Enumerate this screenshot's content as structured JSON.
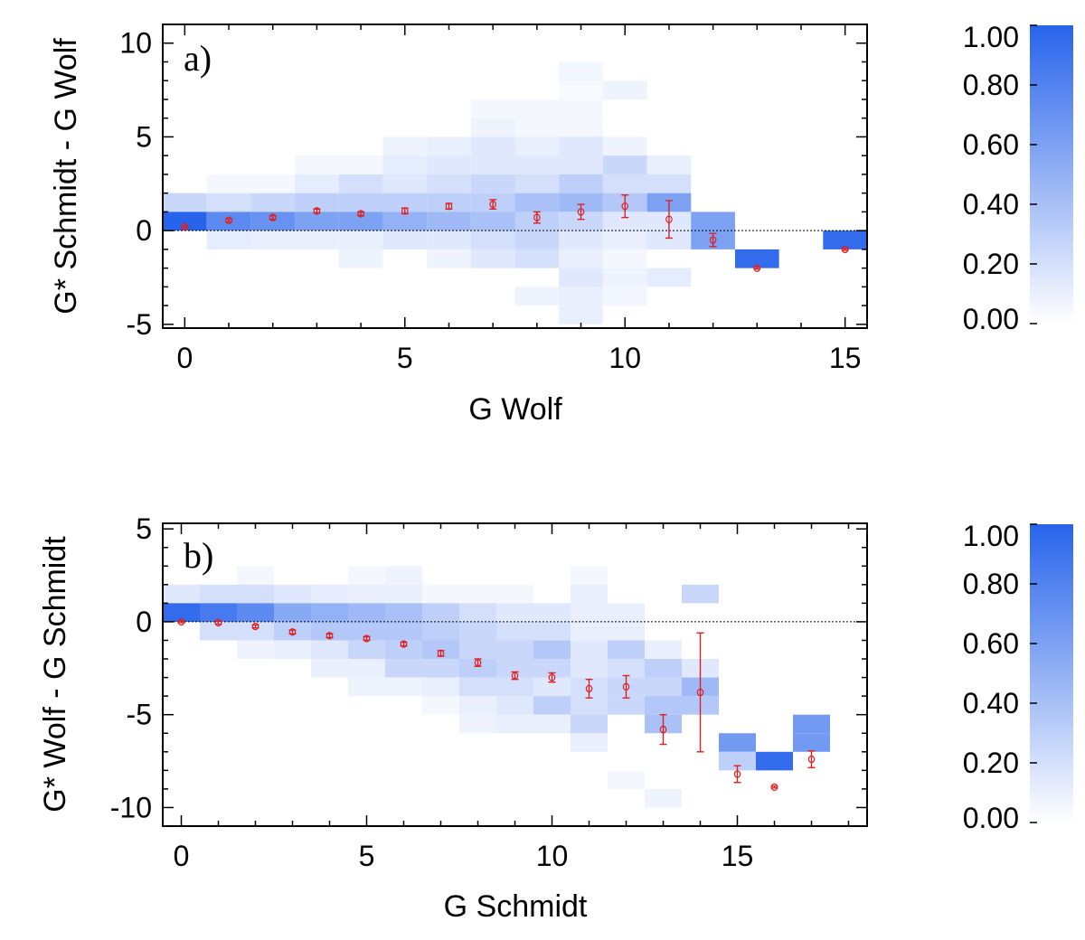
{
  "chart_data": [
    {
      "type": "heatmap",
      "panel_label": "a)",
      "xlabel": "G Wolf",
      "ylabel": "G* Schmidt - G Wolf",
      "xlim": [
        -0.5,
        15.5
      ],
      "ylim": [
        -5.2,
        11.0
      ],
      "xticks": [
        0,
        5,
        10,
        15
      ],
      "yticks": [
        -5,
        0,
        5,
        10
      ],
      "reference_line_y": 0,
      "colorbar": {
        "min": 0.0,
        "max": 1.0,
        "ticks": [
          "0.00",
          "0.20",
          "0.40",
          "0.60",
          "0.80",
          "1.00"
        ]
      },
      "cells": [
        [
          0,
          1,
          0.25
        ],
        [
          0,
          0,
          1.0
        ],
        [
          1,
          2,
          0.05
        ],
        [
          1,
          1,
          0.2
        ],
        [
          1,
          0,
          0.75
        ],
        [
          1,
          -1,
          0.12
        ],
        [
          2,
          2,
          0.05
        ],
        [
          2,
          1,
          0.25
        ],
        [
          2,
          0,
          0.7
        ],
        [
          2,
          -1,
          0.1
        ],
        [
          3,
          3,
          0.05
        ],
        [
          3,
          2,
          0.12
        ],
        [
          3,
          1,
          0.3
        ],
        [
          3,
          0,
          0.6
        ],
        [
          3,
          -1,
          0.1
        ],
        [
          4,
          3,
          0.05
        ],
        [
          4,
          2,
          0.2
        ],
        [
          4,
          1,
          0.3
        ],
        [
          4,
          0,
          0.6
        ],
        [
          4,
          -1,
          0.1
        ],
        [
          4,
          -2,
          0.08
        ],
        [
          5,
          4,
          0.08
        ],
        [
          5,
          3,
          0.12
        ],
        [
          5,
          2,
          0.15
        ],
        [
          5,
          1,
          0.3
        ],
        [
          5,
          0,
          0.5
        ],
        [
          5,
          -1,
          0.15
        ],
        [
          6,
          4,
          0.1
        ],
        [
          6,
          3,
          0.15
        ],
        [
          6,
          2,
          0.2
        ],
        [
          6,
          1,
          0.3
        ],
        [
          6,
          0,
          0.45
        ],
        [
          6,
          -1,
          0.15
        ],
        [
          6,
          -2,
          0.08
        ],
        [
          7,
          6,
          0.05
        ],
        [
          7,
          5,
          0.08
        ],
        [
          7,
          4,
          0.15
        ],
        [
          7,
          3,
          0.15
        ],
        [
          7,
          2,
          0.25
        ],
        [
          7,
          1,
          0.3
        ],
        [
          7,
          0,
          0.4
        ],
        [
          7,
          -1,
          0.2
        ],
        [
          7,
          -2,
          0.15
        ],
        [
          8,
          6,
          0.05
        ],
        [
          8,
          5,
          0.05
        ],
        [
          8,
          4,
          0.1
        ],
        [
          8,
          3,
          0.15
        ],
        [
          8,
          2,
          0.2
        ],
        [
          8,
          1,
          0.4
        ],
        [
          8,
          0,
          0.3
        ],
        [
          8,
          -1,
          0.25
        ],
        [
          8,
          -2,
          0.2
        ],
        [
          8,
          -4,
          0.08
        ],
        [
          9,
          8,
          0.06
        ],
        [
          9,
          7,
          0.04
        ],
        [
          9,
          6,
          0.05
        ],
        [
          9,
          5,
          0.05
        ],
        [
          9,
          4,
          0.15
        ],
        [
          9,
          3,
          0.15
        ],
        [
          9,
          2,
          0.3
        ],
        [
          9,
          1,
          0.45
        ],
        [
          9,
          0,
          0.25
        ],
        [
          9,
          -1,
          0.15
        ],
        [
          9,
          -2,
          0.1
        ],
        [
          9,
          -3,
          0.15
        ],
        [
          9,
          -4,
          0.1
        ],
        [
          9,
          -5,
          0.1
        ],
        [
          10,
          7,
          0.08
        ],
        [
          10,
          4,
          0.08
        ],
        [
          10,
          3,
          0.25
        ],
        [
          10,
          2,
          0.2
        ],
        [
          10,
          1,
          0.35
        ],
        [
          10,
          0,
          0.15
        ],
        [
          10,
          -1,
          0.1
        ],
        [
          10,
          -2,
          0.05
        ],
        [
          10,
          -3,
          0.08
        ],
        [
          10,
          -4,
          0.06
        ],
        [
          11,
          3,
          0.1
        ],
        [
          11,
          2,
          0.2
        ],
        [
          11,
          1,
          0.6
        ],
        [
          11,
          0,
          0.15
        ],
        [
          11,
          -1,
          0.15
        ],
        [
          11,
          -3,
          0.12
        ],
        [
          12,
          0,
          0.6
        ],
        [
          12,
          -1,
          0.6
        ],
        [
          13,
          -2,
          0.95
        ],
        [
          15,
          -1,
          0.95
        ]
      ],
      "points": [
        {
          "x": 0,
          "y": 0.2,
          "err": 0.05
        },
        {
          "x": 1,
          "y": 0.55,
          "err": 0.08
        },
        {
          "x": 2,
          "y": 0.7,
          "err": 0.1
        },
        {
          "x": 3,
          "y": 1.05,
          "err": 0.1
        },
        {
          "x": 4,
          "y": 0.9,
          "err": 0.1
        },
        {
          "x": 5,
          "y": 1.05,
          "err": 0.15
        },
        {
          "x": 6,
          "y": 1.3,
          "err": 0.15
        },
        {
          "x": 7,
          "y": 1.4,
          "err": 0.25
        },
        {
          "x": 8,
          "y": 0.7,
          "err": 0.3
        },
        {
          "x": 9,
          "y": 1.0,
          "err": 0.4
        },
        {
          "x": 10,
          "y": 1.3,
          "err": 0.6
        },
        {
          "x": 11,
          "y": 0.6,
          "err": 1.0
        },
        {
          "x": 12,
          "y": -0.5,
          "err": 0.35
        },
        {
          "x": 13,
          "y": -2.0,
          "err": 0.05
        },
        {
          "x": 15,
          "y": -1.0,
          "err": 0.05
        }
      ]
    },
    {
      "type": "heatmap",
      "panel_label": "b)",
      "xlabel": "G Schmidt",
      "ylabel": "G* Wolf - G Schmidt",
      "xlim": [
        -0.5,
        18.5
      ],
      "ylim": [
        -11.0,
        5.3
      ],
      "xticks": [
        0,
        5,
        10,
        15
      ],
      "yticks": [
        -10,
        -5,
        0,
        5
      ],
      "reference_line_y": 0,
      "colorbar": {
        "min": 0.0,
        "max": 1.0,
        "ticks": [
          "0.00",
          "0.20",
          "0.40",
          "0.60",
          "0.80",
          "1.00"
        ]
      },
      "cells": [
        [
          0,
          1,
          0.15
        ],
        [
          0,
          0,
          0.95
        ],
        [
          1,
          1,
          0.2
        ],
        [
          1,
          0,
          0.85
        ],
        [
          1,
          -1,
          0.2
        ],
        [
          2,
          2,
          0.05
        ],
        [
          2,
          1,
          0.2
        ],
        [
          2,
          0,
          0.75
        ],
        [
          2,
          -1,
          0.2
        ],
        [
          2,
          -2,
          0.08
        ],
        [
          3,
          1,
          0.15
        ],
        [
          3,
          0,
          0.55
        ],
        [
          3,
          -1,
          0.3
        ],
        [
          3,
          -2,
          0.1
        ],
        [
          4,
          1,
          0.12
        ],
        [
          4,
          0,
          0.5
        ],
        [
          4,
          -1,
          0.35
        ],
        [
          4,
          -2,
          0.15
        ],
        [
          4,
          -3,
          0.1
        ],
        [
          5,
          2,
          0.05
        ],
        [
          5,
          1,
          0.1
        ],
        [
          5,
          0,
          0.45
        ],
        [
          5,
          -1,
          0.35
        ],
        [
          5,
          -2,
          0.25
        ],
        [
          5,
          -3,
          0.1
        ],
        [
          5,
          -4,
          0.08
        ],
        [
          6,
          2,
          0.08
        ],
        [
          6,
          1,
          0.1
        ],
        [
          6,
          0,
          0.4
        ],
        [
          6,
          -1,
          0.35
        ],
        [
          6,
          -2,
          0.3
        ],
        [
          6,
          -3,
          0.25
        ],
        [
          6,
          -4,
          0.08
        ],
        [
          7,
          1,
          0.05
        ],
        [
          7,
          0,
          0.3
        ],
        [
          7,
          -1,
          0.3
        ],
        [
          7,
          -2,
          0.35
        ],
        [
          7,
          -3,
          0.25
        ],
        [
          7,
          -4,
          0.1
        ],
        [
          7,
          -5,
          0.05
        ],
        [
          8,
          1,
          0.05
        ],
        [
          8,
          0,
          0.2
        ],
        [
          8,
          -1,
          0.25
        ],
        [
          8,
          -2,
          0.25
        ],
        [
          8,
          -3,
          0.3
        ],
        [
          8,
          -4,
          0.2
        ],
        [
          8,
          -5,
          0.1
        ],
        [
          8,
          -6,
          0.08
        ],
        [
          9,
          1,
          0.05
        ],
        [
          9,
          0,
          0.15
        ],
        [
          9,
          -1,
          0.2
        ],
        [
          9,
          -2,
          0.25
        ],
        [
          9,
          -3,
          0.25
        ],
        [
          9,
          -4,
          0.2
        ],
        [
          9,
          -5,
          0.15
        ],
        [
          9,
          -6,
          0.1
        ],
        [
          10,
          0,
          0.15
        ],
        [
          10,
          -1,
          0.2
        ],
        [
          10,
          -2,
          0.35
        ],
        [
          10,
          -3,
          0.25
        ],
        [
          10,
          -4,
          0.15
        ],
        [
          10,
          -5,
          0.3
        ],
        [
          10,
          -6,
          0.1
        ],
        [
          11,
          2,
          0.05
        ],
        [
          11,
          1,
          0.1
        ],
        [
          11,
          0,
          0.1
        ],
        [
          11,
          -1,
          0.1
        ],
        [
          11,
          -2,
          0.15
        ],
        [
          11,
          -3,
          0.15
        ],
        [
          11,
          -4,
          0.2
        ],
        [
          11,
          -5,
          0.2
        ],
        [
          11,
          -6,
          0.25
        ],
        [
          11,
          -7,
          0.1
        ],
        [
          12,
          0,
          0.1
        ],
        [
          12,
          -1,
          0.1
        ],
        [
          12,
          -2,
          0.3
        ],
        [
          12,
          -3,
          0.2
        ],
        [
          12,
          -4,
          0.25
        ],
        [
          12,
          -5,
          0.25
        ],
        [
          12,
          -9,
          0.05
        ],
        [
          13,
          -2,
          0.1
        ],
        [
          13,
          -3,
          0.3
        ],
        [
          13,
          -4,
          0.25
        ],
        [
          13,
          -5,
          0.35
        ],
        [
          13,
          -6,
          0.4
        ],
        [
          13,
          -10,
          0.08
        ],
        [
          14,
          1,
          0.25
        ],
        [
          14,
          -3,
          0.15
        ],
        [
          14,
          -4,
          0.45
        ],
        [
          14,
          -5,
          0.35
        ],
        [
          15,
          -7,
          0.65
        ],
        [
          15,
          -8,
          0.3
        ],
        [
          16,
          -8,
          0.95
        ],
        [
          17,
          -6,
          0.65
        ],
        [
          17,
          -7,
          0.65
        ]
      ],
      "points": [
        {
          "x": 0,
          "y": 0.0,
          "err": 0.05
        },
        {
          "x": 1,
          "y": -0.05,
          "err": 0.08
        },
        {
          "x": 2,
          "y": -0.25,
          "err": 0.08
        },
        {
          "x": 3,
          "y": -0.55,
          "err": 0.1
        },
        {
          "x": 4,
          "y": -0.75,
          "err": 0.1
        },
        {
          "x": 5,
          "y": -0.9,
          "err": 0.1
        },
        {
          "x": 6,
          "y": -1.2,
          "err": 0.1
        },
        {
          "x": 7,
          "y": -1.7,
          "err": 0.15
        },
        {
          "x": 8,
          "y": -2.2,
          "err": 0.2
        },
        {
          "x": 9,
          "y": -2.9,
          "err": 0.2
        },
        {
          "x": 10,
          "y": -3.0,
          "err": 0.25
        },
        {
          "x": 11,
          "y": -3.6,
          "err": 0.5
        },
        {
          "x": 12,
          "y": -3.5,
          "err": 0.6
        },
        {
          "x": 13,
          "y": -5.8,
          "err": 0.8
        },
        {
          "x": 14,
          "y": -3.8,
          "err": 3.2
        },
        {
          "x": 15,
          "y": -8.2,
          "err": 0.45
        },
        {
          "x": 16,
          "y": -8.9,
          "err": 0.05
        },
        {
          "x": 17,
          "y": -7.4,
          "err": 0.45
        }
      ]
    }
  ]
}
